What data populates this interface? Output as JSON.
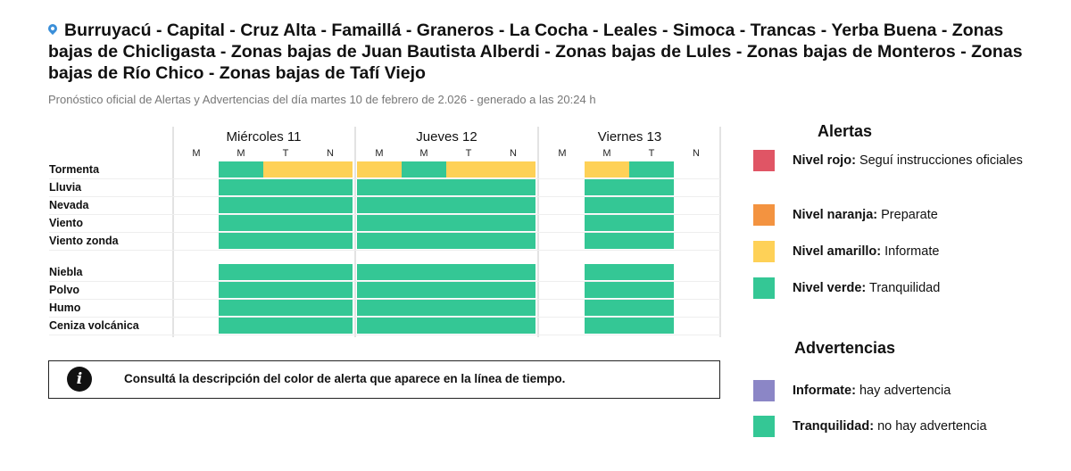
{
  "title": "Burruyacú - Capital - Cruz Alta - Famaillá - Graneros - La Cocha - Leales - Simoca - Trancas - Yerba Buena - Zonas bajas de Chicligasta - Zonas bajas de Juan Bautista Alberdi - Zonas bajas de Lules - Zonas bajas de Monteros - Zonas bajas de Río Chico - Zonas bajas de Tafí Viejo",
  "subtitle": "Pronóstico oficial de Alertas y Advertencias del día martes 10 de febrero de 2.026 - generado a las 20:24 h",
  "colors": {
    "g": "#34c795",
    "y": "#fed157",
    "r": "#e05565",
    "o": "#f39340",
    "p": "#8b86c6"
  },
  "days": [
    {
      "label": "Miércoles 11"
    },
    {
      "label": "Jueves 12"
    },
    {
      "label": "Viernes 13"
    }
  ],
  "slots": [
    "M",
    "M",
    "T",
    "N"
  ],
  "rows": [
    {
      "label": "Tormenta",
      "cells": [
        "",
        "g",
        "y",
        "y",
        "y",
        "g",
        "y",
        "y",
        "",
        "y",
        "g",
        ""
      ]
    },
    {
      "label": "Lluvia",
      "cells": [
        "",
        "g",
        "g",
        "g",
        "g",
        "g",
        "g",
        "g",
        "",
        "g",
        "g",
        ""
      ]
    },
    {
      "label": "Nevada",
      "cells": [
        "",
        "g",
        "g",
        "g",
        "g",
        "g",
        "g",
        "g",
        "",
        "g",
        "g",
        ""
      ]
    },
    {
      "label": "Viento",
      "cells": [
        "",
        "g",
        "g",
        "g",
        "g",
        "g",
        "g",
        "g",
        "",
        "g",
        "g",
        ""
      ]
    },
    {
      "label": "Viento zonda",
      "cells": [
        "",
        "g",
        "g",
        "g",
        "g",
        "g",
        "g",
        "g",
        "",
        "g",
        "g",
        ""
      ]
    },
    {
      "label": "Niebla",
      "cells": [
        "",
        "g",
        "g",
        "g",
        "g",
        "g",
        "g",
        "g",
        "",
        "g",
        "g",
        ""
      ]
    },
    {
      "label": "Polvo",
      "cells": [
        "",
        "g",
        "g",
        "g",
        "g",
        "g",
        "g",
        "g",
        "",
        "g",
        "g",
        ""
      ]
    },
    {
      "label": "Humo",
      "cells": [
        "",
        "g",
        "g",
        "g",
        "g",
        "g",
        "g",
        "g",
        "",
        "g",
        "g",
        ""
      ]
    },
    {
      "label": "Ceniza volcánica",
      "cells": [
        "",
        "g",
        "g",
        "g",
        "g",
        "g",
        "g",
        "g",
        "",
        "g",
        "g",
        ""
      ]
    }
  ],
  "info": "Consultá la descripción del color de alerta que aparece en la línea de tiempo.",
  "alertas": {
    "title": "Alertas",
    "items": [
      {
        "color": "r",
        "name": "Nivel rojo:",
        "desc": "Seguí instrucciones oficiales"
      },
      {
        "color": "o",
        "name": "Nivel naranja:",
        "desc": "Preparate"
      },
      {
        "color": "y",
        "name": "Nivel amarillo:",
        "desc": "Informate"
      },
      {
        "color": "g",
        "name": "Nivel verde:",
        "desc": "Tranquilidad"
      }
    ]
  },
  "advertencias": {
    "title": "Advertencias",
    "items": [
      {
        "color": "p",
        "name": "Informate:",
        "desc": "hay advertencia"
      },
      {
        "color": "g",
        "name": "Tranquilidad:",
        "desc": "no hay advertencia"
      }
    ]
  }
}
